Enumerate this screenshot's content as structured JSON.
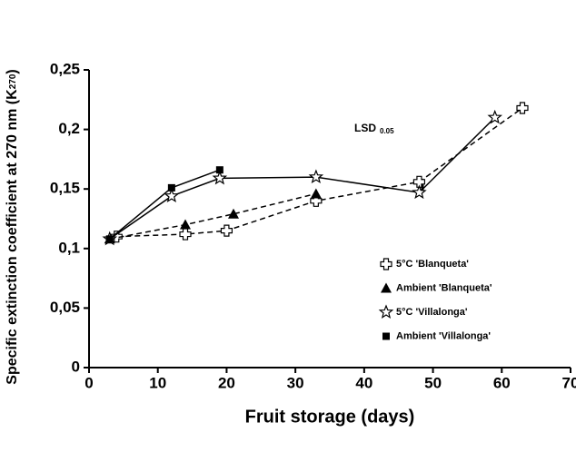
{
  "chart_data": {
    "type": "line",
    "xlabel": "Fruit storage (days)",
    "ylabel": [
      "Specific extinction coefficient at 270 nm (K",
      "270",
      ")"
    ],
    "annotation": {
      "text": "LSD",
      "subscript": "0.05",
      "bar_length": 0.011
    },
    "xlim": [
      0,
      70
    ],
    "xticks": [
      0,
      10,
      20,
      30,
      40,
      50,
      60,
      70
    ],
    "ylim": [
      0,
      0.25
    ],
    "yticks": [
      0,
      {
        "value": 0.05,
        "label": "0,05"
      },
      {
        "value": 0.1,
        "label": "0,1"
      },
      {
        "value": 0.15,
        "label": "0,15"
      },
      {
        "value": 0.2,
        "label": "0,2"
      },
      {
        "value": 0.25,
        "label": "0,25"
      }
    ],
    "series": [
      {
        "name": "5°C 'Blanqueta'",
        "color": "#000000",
        "marker": "cross",
        "dashed": true,
        "x": [
          4,
          14,
          20,
          33,
          48,
          63
        ],
        "values": [
          0.11,
          0.112,
          0.115,
          0.14,
          0.156,
          0.218
        ]
      },
      {
        "name": "Ambient 'Blanqueta'",
        "color": "#000000",
        "marker": "triangle",
        "dashed": true,
        "x": [
          3,
          14,
          21,
          33
        ],
        "values": [
          0.108,
          0.12,
          0.129,
          0.146
        ]
      },
      {
        "name": "5°C 'Villalonga'",
        "color": "#000000",
        "marker": "star",
        "dashed": false,
        "x": [
          3,
          12,
          19,
          33,
          48,
          59
        ],
        "values": [
          0.108,
          0.144,
          0.159,
          0.16,
          0.147,
          0.21
        ]
      },
      {
        "name": "Ambient 'Villalonga'",
        "color": "#000000",
        "marker": "square",
        "dashed": false,
        "x": [
          3,
          12,
          19
        ],
        "values": [
          0.108,
          0.151,
          0.166
        ]
      }
    ]
  }
}
